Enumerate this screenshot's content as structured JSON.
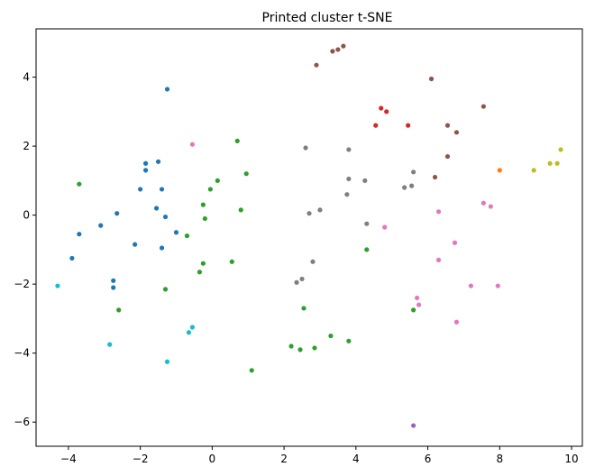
{
  "chart_data": {
    "type": "scatter",
    "title": "Printed cluster t-SNE",
    "xlabel": "",
    "ylabel": "",
    "xlim": [
      -4.9,
      10.3
    ],
    "ylim": [
      -6.7,
      5.4
    ],
    "xticks": [
      -4,
      -2,
      0,
      2,
      4,
      6,
      8,
      10
    ],
    "yticks": [
      -6,
      -4,
      -2,
      0,
      2,
      4
    ],
    "grid": false,
    "legend": "none",
    "series": [
      {
        "color": "#1f77b4",
        "points": [
          [
            -1.25,
            3.65
          ],
          [
            -1.85,
            1.5
          ],
          [
            -1.85,
            1.3
          ],
          [
            -1.5,
            1.55
          ],
          [
            -2.0,
            0.75
          ],
          [
            -1.4,
            0.75
          ],
          [
            -1.55,
            0.2
          ],
          [
            -1.3,
            -0.05
          ],
          [
            -2.65,
            0.05
          ],
          [
            -3.1,
            -0.3
          ],
          [
            -3.7,
            -0.55
          ],
          [
            -1.0,
            -0.5
          ],
          [
            -1.4,
            -0.95
          ],
          [
            -2.15,
            -0.85
          ],
          [
            -3.9,
            -1.25
          ],
          [
            -2.75,
            -1.9
          ],
          [
            -2.75,
            -2.1
          ]
        ]
      },
      {
        "color": "#ff7f0e",
        "points": [
          [
            8.0,
            1.3
          ]
        ]
      },
      {
        "color": "#2ca02c",
        "points": [
          [
            -3.7,
            0.9
          ],
          [
            0.7,
            2.15
          ],
          [
            0.95,
            1.2
          ],
          [
            0.15,
            1.0
          ],
          [
            -0.05,
            0.75
          ],
          [
            -0.25,
            0.3
          ],
          [
            -0.2,
            -0.1
          ],
          [
            -0.7,
            -0.6
          ],
          [
            0.8,
            0.15
          ],
          [
            -0.25,
            -1.4
          ],
          [
            0.55,
            -1.35
          ],
          [
            -0.35,
            -1.65
          ],
          [
            -1.3,
            -2.15
          ],
          [
            -2.6,
            -2.75
          ],
          [
            2.55,
            -2.7
          ],
          [
            4.3,
            -1.0
          ],
          [
            5.6,
            -2.75
          ],
          [
            2.2,
            -3.8
          ],
          [
            2.45,
            -3.9
          ],
          [
            2.85,
            -3.85
          ],
          [
            3.3,
            -3.5
          ],
          [
            3.8,
            -3.65
          ],
          [
            1.1,
            -4.5
          ]
        ]
      },
      {
        "color": "#d62728",
        "points": [
          [
            4.7,
            3.1
          ],
          [
            4.85,
            3.0
          ],
          [
            4.55,
            2.6
          ],
          [
            5.45,
            2.6
          ]
        ]
      },
      {
        "color": "#9467bd",
        "points": [
          [
            5.6,
            -6.1
          ]
        ]
      },
      {
        "color": "#8c564b",
        "points": [
          [
            2.9,
            4.35
          ],
          [
            3.35,
            4.75
          ],
          [
            3.5,
            4.8
          ],
          [
            3.65,
            4.9
          ],
          [
            6.1,
            3.95
          ],
          [
            7.55,
            3.15
          ],
          [
            6.55,
            2.6
          ],
          [
            6.8,
            2.4
          ],
          [
            6.55,
            1.7
          ],
          [
            6.2,
            1.1
          ]
        ]
      },
      {
        "color": "#e377c2",
        "points": [
          [
            -0.55,
            2.05
          ],
          [
            4.8,
            -0.35
          ],
          [
            6.3,
            0.1
          ],
          [
            7.55,
            0.35
          ],
          [
            7.75,
            0.25
          ],
          [
            6.75,
            -0.8
          ],
          [
            6.3,
            -1.3
          ],
          [
            7.2,
            -2.05
          ],
          [
            7.95,
            -2.05
          ],
          [
            5.7,
            -2.4
          ],
          [
            5.75,
            -2.6
          ],
          [
            6.8,
            -3.1
          ]
        ]
      },
      {
        "color": "#7f7f7f",
        "points": [
          [
            2.6,
            1.95
          ],
          [
            3.8,
            1.9
          ],
          [
            5.6,
            1.25
          ],
          [
            3.8,
            1.05
          ],
          [
            4.25,
            1.0
          ],
          [
            5.55,
            0.85
          ],
          [
            5.35,
            0.8
          ],
          [
            3.75,
            0.6
          ],
          [
            3.0,
            0.15
          ],
          [
            2.7,
            0.05
          ],
          [
            4.3,
            -0.25
          ],
          [
            2.8,
            -1.35
          ],
          [
            2.5,
            -1.85
          ],
          [
            2.35,
            -1.95
          ]
        ]
      },
      {
        "color": "#bcbd22",
        "points": [
          [
            9.7,
            1.9
          ],
          [
            9.4,
            1.5
          ],
          [
            9.6,
            1.5
          ],
          [
            8.95,
            1.3
          ]
        ]
      },
      {
        "color": "#17becf",
        "points": [
          [
            -4.3,
            -2.05
          ],
          [
            -2.85,
            -3.75
          ],
          [
            -0.55,
            -3.25
          ],
          [
            -0.65,
            -3.4
          ],
          [
            -1.25,
            -4.25
          ]
        ]
      }
    ]
  }
}
